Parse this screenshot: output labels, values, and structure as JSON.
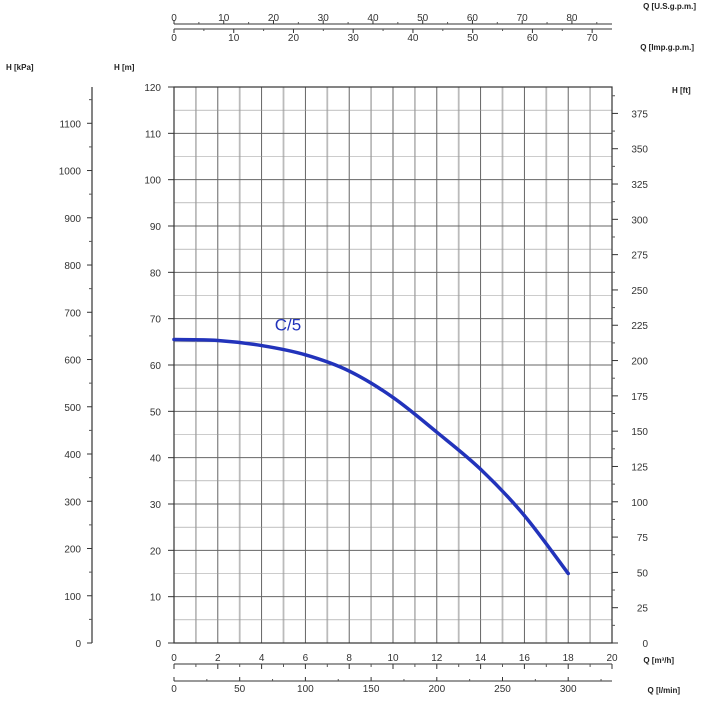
{
  "chart_data": {
    "type": "line",
    "curve_color": "#2233bb",
    "series": [
      {
        "name": "C/5",
        "x": [
          0,
          2,
          4,
          6,
          8,
          10,
          12,
          14,
          16,
          18
        ],
        "y": [
          65.5,
          65.3,
          64.2,
          62.2,
          58.7,
          53,
          45.5,
          37.5,
          27.5,
          15
        ]
      }
    ],
    "xlim": [
      0,
      20
    ],
    "ylim": [
      0,
      120
    ],
    "grid": true,
    "axes": {
      "bottom_primary": {
        "label": "Q [m³/h]",
        "ticks": [
          "0",
          "2",
          "4",
          "6",
          "8",
          "10",
          "12",
          "14",
          "16",
          "18",
          "20"
        ]
      },
      "bottom_secondary": {
        "label": "Q [l/min]",
        "ticks": [
          "0",
          "50",
          "100",
          "150",
          "200",
          "250",
          "300"
        ]
      },
      "top_primary": {
        "label": "Q [U.S.g.p.m.]",
        "ticks": [
          "0",
          "10",
          "20",
          "30",
          "40",
          "50",
          "60",
          "70",
          "80"
        ]
      },
      "top_secondary": {
        "label": "Q [Imp.g.p.m.]",
        "ticks": [
          "0",
          "10",
          "20",
          "30",
          "40",
          "50",
          "60",
          "70"
        ]
      },
      "left_m": {
        "label": "H [m]",
        "ticks": [
          "0",
          "10",
          "20",
          "30",
          "40",
          "50",
          "60",
          "70",
          "80",
          "90",
          "100",
          "110",
          "120"
        ]
      },
      "left_kpa": {
        "label": "H [kPa]",
        "ticks": [
          "0",
          "100",
          "200",
          "300",
          "400",
          "500",
          "600",
          "700",
          "800",
          "900",
          "1000",
          "1100"
        ]
      },
      "right_ft": {
        "label": "H [ft]",
        "ticks": [
          "0",
          "25",
          "50",
          "75",
          "100",
          "125",
          "150",
          "175",
          "200",
          "225",
          "250",
          "275",
          "300",
          "325",
          "350",
          "375"
        ]
      }
    }
  }
}
